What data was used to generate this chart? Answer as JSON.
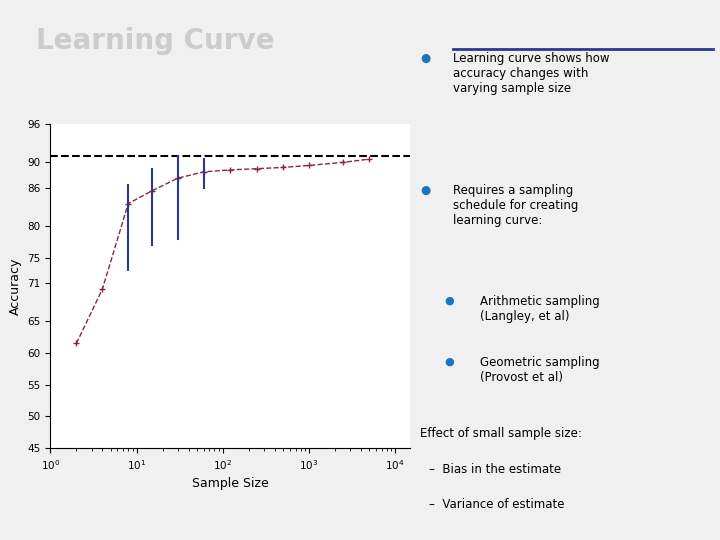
{
  "title": "Learning Curve",
  "xlabel": "Sample Size",
  "ylabel": "Accuracy",
  "ylim": [
    45,
    96
  ],
  "xlim": [
    1,
    15000
  ],
  "yticks": [
    45,
    50,
    55,
    60,
    65,
    71,
    75,
    80,
    86,
    90,
    96
  ],
  "dashed_line_y": 91,
  "x_data": [
    2,
    4,
    8,
    15,
    30,
    60,
    120,
    250,
    500,
    1000,
    2500,
    5000
  ],
  "y_data": [
    61.5,
    70.0,
    83.5,
    85.5,
    87.5,
    88.5,
    88.8,
    89.0,
    89.2,
    89.5,
    90.0,
    90.5
  ],
  "yerr_lower": [
    0,
    0,
    10.5,
    8.5,
    9.5,
    2.5,
    0,
    0,
    0,
    0,
    0,
    0
  ],
  "yerr_upper": [
    0,
    0,
    3.0,
    3.5,
    3.5,
    2.0,
    0,
    0,
    0,
    0,
    0,
    0
  ],
  "line_color": "#8B2252",
  "errbar_color": "#2B3990",
  "hline_color": "#000000",
  "fig_bg_color": "#F0F0F0",
  "chart_bg_color": "#FFFFFF",
  "title_color": "#CCCCCC",
  "bullet_color": "#1B75BC",
  "right_bg_color": "#E8E8F0",
  "text_color": "#000000"
}
